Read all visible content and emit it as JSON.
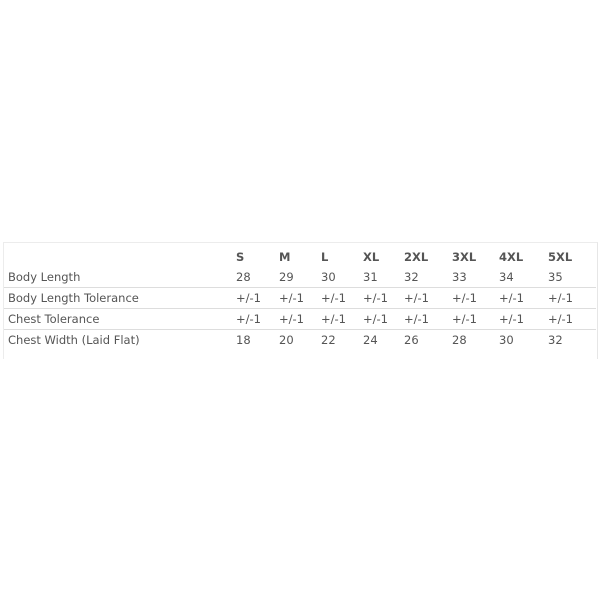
{
  "table": {
    "headers": [
      "",
      "S",
      "M",
      "L",
      "XL",
      "2XL",
      "3XL",
      "4XL",
      "5XL"
    ],
    "rows": [
      {
        "label": "Body Length",
        "values": [
          "28",
          "29",
          "30",
          "31",
          "32",
          "33",
          "34",
          "35"
        ]
      },
      {
        "label": "Body Length Tolerance",
        "values": [
          "+/-1",
          "+/-1",
          "+/-1",
          "+/-1",
          "+/-1",
          "+/-1",
          "+/-1",
          "+/-1"
        ]
      },
      {
        "label": "Chest Tolerance",
        "values": [
          "+/-1",
          "+/-1",
          "+/-1",
          "+/-1",
          "+/-1",
          "+/-1",
          "+/-1",
          "+/-1"
        ]
      },
      {
        "label": "Chest Width (Laid Flat)",
        "values": [
          "18",
          "20",
          "22",
          "24",
          "26",
          "28",
          "30",
          "32"
        ]
      }
    ]
  }
}
